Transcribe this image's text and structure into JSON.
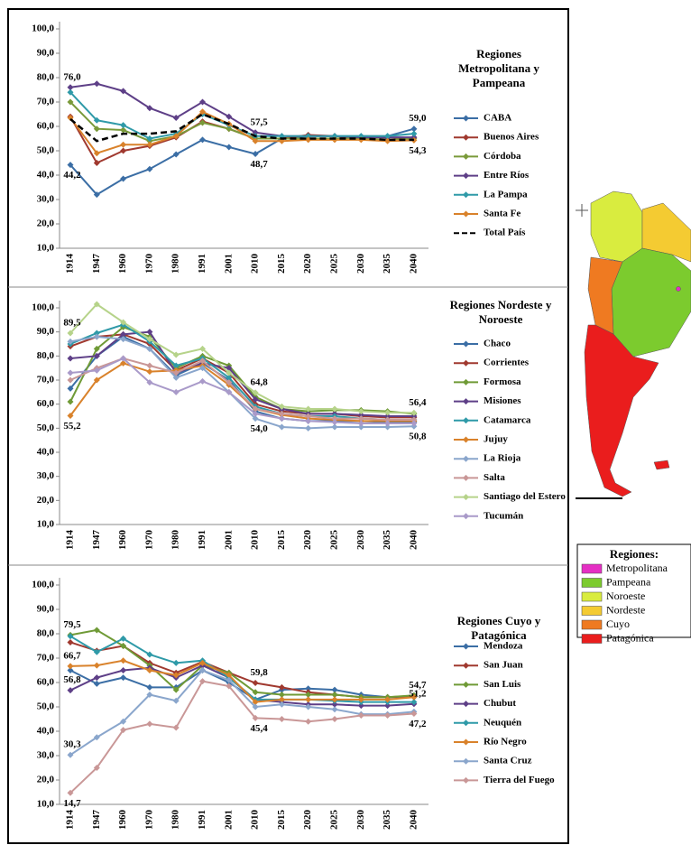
{
  "chart_data": [
    {
      "type": "line",
      "title": "Regiones Metropolitana y Pampeana",
      "categories": [
        "1914",
        "1947",
        "1960",
        "1970",
        "1980",
        "1991",
        "2001",
        "2010",
        "2015",
        "2020",
        "2025",
        "2030",
        "2035",
        "2040"
      ],
      "ylim": [
        10,
        100
      ],
      "yticks": [
        {
          "value": 10,
          "label": "10,0"
        },
        {
          "value": 20,
          "label": "20,0"
        },
        {
          "value": 30,
          "label": "30,0"
        },
        {
          "value": 40,
          "label": "40,0"
        },
        {
          "value": 50,
          "label": "50,0"
        },
        {
          "value": 60,
          "label": "60,0"
        },
        {
          "value": 70,
          "label": "70,0"
        },
        {
          "value": 80,
          "label": "80,0"
        },
        {
          "value": 90,
          "label": "90,0"
        },
        {
          "value": 100,
          "label": "100,0"
        }
      ],
      "grid": false,
      "series": [
        {
          "name": "CABA",
          "color": "#3b6ea5",
          "values": [
            44.2,
            32,
            38.5,
            42.5,
            48.5,
            54.5,
            51.5,
            48.7,
            55,
            56,
            56,
            56,
            56,
            59.0
          ],
          "value_labels": [
            "44,2",
            null,
            null,
            null,
            null,
            null,
            null,
            "48,7",
            null,
            null,
            null,
            null,
            null,
            "59,0"
          ]
        },
        {
          "name": "Buenos Aires",
          "color": "#a0392f",
          "values": [
            64,
            45,
            50,
            52,
            55.5,
            62,
            59,
            55,
            55,
            56.5,
            56,
            55,
            54.5,
            55.5
          ]
        },
        {
          "name": "Córdoba",
          "color": "#7a9a3a",
          "values": [
            70,
            59,
            58.5,
            54,
            56,
            61.5,
            59,
            55,
            55,
            55,
            55,
            55,
            54.5,
            55
          ]
        },
        {
          "name": "Entre Ríos",
          "color": "#5e3f87",
          "values": [
            76.0,
            77.5,
            74.5,
            67.5,
            63.5,
            70,
            64,
            57.5,
            56,
            56,
            56,
            55.5,
            55.5,
            55.5
          ],
          "value_labels": [
            "76,0",
            null,
            null,
            null,
            null,
            null,
            null,
            "57,5",
            null,
            null,
            null,
            null,
            null,
            null
          ]
        },
        {
          "name": "La Pampa",
          "color": "#2f9aa8",
          "values": [
            74,
            62.5,
            60.5,
            55,
            57,
            65,
            60.5,
            56,
            56,
            56,
            56,
            56,
            56,
            57
          ]
        },
        {
          "name": "Santa Fe",
          "color": "#d9822b",
          "values": [
            63.5,
            49,
            52.5,
            52.5,
            56,
            66,
            61,
            54,
            54,
            54.5,
            54.5,
            54.5,
            54,
            54.3
          ],
          "value_labels": [
            null,
            null,
            null,
            null,
            null,
            null,
            null,
            null,
            null,
            null,
            null,
            null,
            null,
            "54,3"
          ]
        },
        {
          "name": "Total País",
          "color": "#000000",
          "dash": true,
          "values": [
            63,
            54,
            57,
            57,
            58,
            65,
            61,
            56,
            55,
            55,
            55,
            55,
            54.5,
            54.5
          ]
        }
      ]
    },
    {
      "type": "line",
      "title": "Regiones Nordeste y Noroeste",
      "categories": [
        "1914",
        "1947",
        "1960",
        "1970",
        "1980",
        "1991",
        "2001",
        "2010",
        "2015",
        "2020",
        "2025",
        "2030",
        "2035",
        "2040"
      ],
      "ylim": [
        10,
        100
      ],
      "yticks": [
        {
          "value": 10,
          "label": "10,0"
        },
        {
          "value": 20,
          "label": "20,0"
        },
        {
          "value": 30,
          "label": "30,0"
        },
        {
          "value": 40,
          "label": "40,0"
        },
        {
          "value": 50,
          "label": "50,0"
        },
        {
          "value": 60,
          "label": "60,0"
        },
        {
          "value": 70,
          "label": "70,0"
        },
        {
          "value": 80,
          "label": "80,0"
        },
        {
          "value": 90,
          "label": "90,0"
        },
        {
          "value": 100,
          "label": "100,0"
        }
      ],
      "grid": false,
      "series": [
        {
          "name": "Chaco",
          "color": "#3b6ea5",
          "values": [
            66.5,
            80,
            88,
            83,
            72,
            77,
            70,
            57,
            54,
            53,
            53,
            53,
            52.5,
            52.5
          ]
        },
        {
          "name": "Corrientes",
          "color": "#a0392f",
          "values": [
            84,
            88,
            89,
            85,
            74,
            79,
            73,
            60,
            57,
            56,
            56,
            55,
            54.5,
            54.5
          ]
        },
        {
          "name": "Formosa",
          "color": "#6f9a36",
          "values": [
            61,
            83,
            92,
            88,
            75,
            80,
            76,
            63,
            58,
            57,
            57.5,
            57.5,
            57,
            56
          ]
        },
        {
          "name": "Misiones",
          "color": "#5e3f87",
          "values": [
            79,
            80,
            89,
            90,
            73,
            77,
            75,
            62,
            58,
            56,
            56,
            55.5,
            55,
            55
          ]
        },
        {
          "name": "Catamarca",
          "color": "#2f9aa8",
          "values": [
            85,
            89.5,
            93,
            86,
            76,
            79,
            71,
            59,
            56,
            55,
            55,
            54,
            53.5,
            53.5
          ]
        },
        {
          "name": "Jujuy",
          "color": "#d9822b",
          "values": [
            55.2,
            70,
            77,
            73.5,
            74,
            76,
            68,
            58,
            55.5,
            54,
            53.5,
            53,
            53,
            53
          ],
          "value_labels": [
            "55,2",
            null,
            null,
            null,
            null,
            null,
            null,
            null,
            null,
            null,
            null,
            null,
            null,
            null
          ]
        },
        {
          "name": "La Rioja",
          "color": "#8aa6cc",
          "values": [
            86,
            88,
            87,
            83,
            71,
            75,
            65,
            54.0,
            50.5,
            50,
            50.5,
            50.5,
            50.5,
            50.8
          ],
          "value_labels": [
            null,
            null,
            null,
            null,
            null,
            null,
            null,
            "54,0",
            null,
            null,
            null,
            null,
            null,
            "50,8"
          ]
        },
        {
          "name": "Salta",
          "color": "#c99797",
          "values": [
            70,
            75,
            79,
            76,
            73,
            78,
            69,
            58,
            56,
            55,
            54,
            54,
            53.5,
            53.5
          ]
        },
        {
          "name": "Santiago del Estero",
          "color": "#b6d38a",
          "values": [
            89.5,
            101.5,
            94,
            87,
            80.5,
            83,
            73,
            64.8,
            59,
            58,
            58,
            57,
            56.5,
            56.4
          ],
          "value_labels": [
            "89,5",
            null,
            null,
            null,
            null,
            null,
            null,
            "64,8",
            null,
            null,
            null,
            null,
            null,
            "56,4"
          ]
        },
        {
          "name": "Tucumán",
          "color": "#a99ac9",
          "values": [
            73,
            74,
            79,
            69,
            65,
            69.5,
            65,
            56,
            54,
            53,
            52.5,
            52,
            52,
            52
          ]
        }
      ]
    },
    {
      "type": "line",
      "title": "Regiones Cuyo y Patagónica",
      "categories": [
        "1914",
        "1947",
        "1960",
        "1970",
        "1980",
        "1991",
        "2001",
        "2010",
        "2015",
        "2020",
        "2025",
        "2030",
        "2035",
        "2040"
      ],
      "ylim": [
        10,
        100
      ],
      "yticks": [
        {
          "value": 10,
          "label": "10,0"
        },
        {
          "value": 20,
          "label": "20,0"
        },
        {
          "value": 30,
          "label": "30,0"
        },
        {
          "value": 40,
          "label": "40,0"
        },
        {
          "value": 50,
          "label": "50,0"
        },
        {
          "value": 60,
          "label": "60,0"
        },
        {
          "value": 70,
          "label": "70,0"
        },
        {
          "value": 80,
          "label": "80,0"
        },
        {
          "value": 90,
          "label": "90,0"
        },
        {
          "value": 100,
          "label": "100,0"
        }
      ],
      "grid": false,
      "series": [
        {
          "name": "Mendoza",
          "color": "#3b6ea5",
          "values": [
            65,
            59.5,
            62,
            58,
            58,
            65,
            60,
            53,
            57,
            57.5,
            57,
            55,
            54,
            54
          ]
        },
        {
          "name": "San Juan",
          "color": "#a0392f",
          "values": [
            76.5,
            73,
            75,
            68,
            64,
            68.5,
            64,
            59.8,
            58,
            56,
            55,
            54,
            54,
            54.5
          ],
          "value_labels": [
            null,
            null,
            null,
            null,
            null,
            null,
            null,
            "59,8",
            null,
            null,
            null,
            null,
            null,
            null
          ]
        },
        {
          "name": "San Luis",
          "color": "#6f9a36",
          "values": [
            79.5,
            81.5,
            75,
            67,
            57,
            67,
            64,
            56,
            55,
            55,
            55,
            54,
            54,
            54.7
          ],
          "value_labels": [
            "79,5",
            null,
            null,
            null,
            null,
            null,
            null,
            null,
            null,
            null,
            null,
            null,
            null,
            "54,7"
          ]
        },
        {
          "name": "Chubut",
          "color": "#5e3f87",
          "values": [
            56.8,
            62,
            65,
            66,
            62,
            67,
            62,
            53,
            52,
            51,
            51,
            50.5,
            50.5,
            51.2
          ],
          "value_labels": [
            "56,8",
            null,
            null,
            null,
            null,
            null,
            null,
            null,
            null,
            null,
            null,
            null,
            null,
            "51,2"
          ]
        },
        {
          "name": "Neuquén",
          "color": "#2f9aa8",
          "values": [
            79,
            72.5,
            78,
            71.5,
            68,
            69,
            62,
            53,
            53,
            53,
            52.5,
            52,
            52,
            52
          ]
        },
        {
          "name": "Río Negro",
          "color": "#d9822b",
          "values": [
            66.7,
            67,
            69,
            65,
            63,
            68,
            63,
            52,
            53,
            53,
            53,
            53,
            53,
            54
          ],
          "value_labels": [
            "66,7",
            null,
            null,
            null,
            null,
            null,
            null,
            null,
            null,
            null,
            null,
            null,
            null,
            null
          ]
        },
        {
          "name": "Santa Cruz",
          "color": "#8aa6cc",
          "values": [
            30.3,
            37.5,
            44,
            55,
            52.5,
            65,
            61,
            50,
            51,
            50,
            49,
            47,
            47,
            48
          ],
          "value_labels": [
            "30,3",
            null,
            null,
            null,
            null,
            null,
            null,
            null,
            null,
            null,
            null,
            null,
            null,
            null
          ]
        },
        {
          "name": "Tierra del Fuego",
          "color": "#c99797",
          "values": [
            14.7,
            25,
            40.5,
            43,
            41.5,
            60.5,
            58.5,
            45.4,
            45,
            44,
            45,
            46.5,
            46.5,
            47.2
          ],
          "value_labels": [
            "14,7",
            null,
            null,
            null,
            null,
            null,
            null,
            "45,4",
            null,
            null,
            null,
            null,
            null,
            "47,2"
          ]
        }
      ]
    }
  ],
  "map_legend": {
    "title": "Regiones:",
    "items": [
      {
        "label": "Metropolitana",
        "color": "#e52fc4"
      },
      {
        "label": "Pampeana",
        "color": "#7ccb2e"
      },
      {
        "label": "Noroeste",
        "color": "#d9ec3f"
      },
      {
        "label": "Nordeste",
        "color": "#f4cb32"
      },
      {
        "label": "Cuyo",
        "color": "#ef7a21"
      },
      {
        "label": "Patagónica",
        "color": "#ea1d1d"
      }
    ]
  }
}
